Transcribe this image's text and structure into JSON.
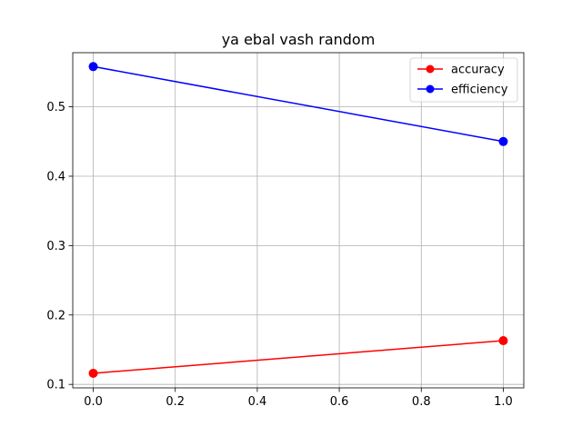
{
  "chart_data": {
    "type": "line",
    "title": "ya ebal vash random",
    "xlabel": "",
    "ylabel": "",
    "xlim": [
      -0.05,
      1.05
    ],
    "ylim": [
      0.095,
      0.578
    ],
    "x_ticks": [
      "0.0",
      "0.2",
      "0.4",
      "0.6",
      "0.8",
      "1.0"
    ],
    "y_ticks": [
      "0.1",
      "0.2",
      "0.3",
      "0.4",
      "0.5"
    ],
    "grid": true,
    "legend_position": "top-right",
    "series": [
      {
        "name": "accuracy",
        "color": "#ff0000",
        "marker": "circle",
        "x": [
          0.0,
          1.0
        ],
        "y": [
          0.116,
          0.163
        ]
      },
      {
        "name": "efficiency",
        "color": "#0000ff",
        "marker": "circle",
        "x": [
          0.0,
          1.0
        ],
        "y": [
          0.558,
          0.45
        ]
      }
    ]
  }
}
